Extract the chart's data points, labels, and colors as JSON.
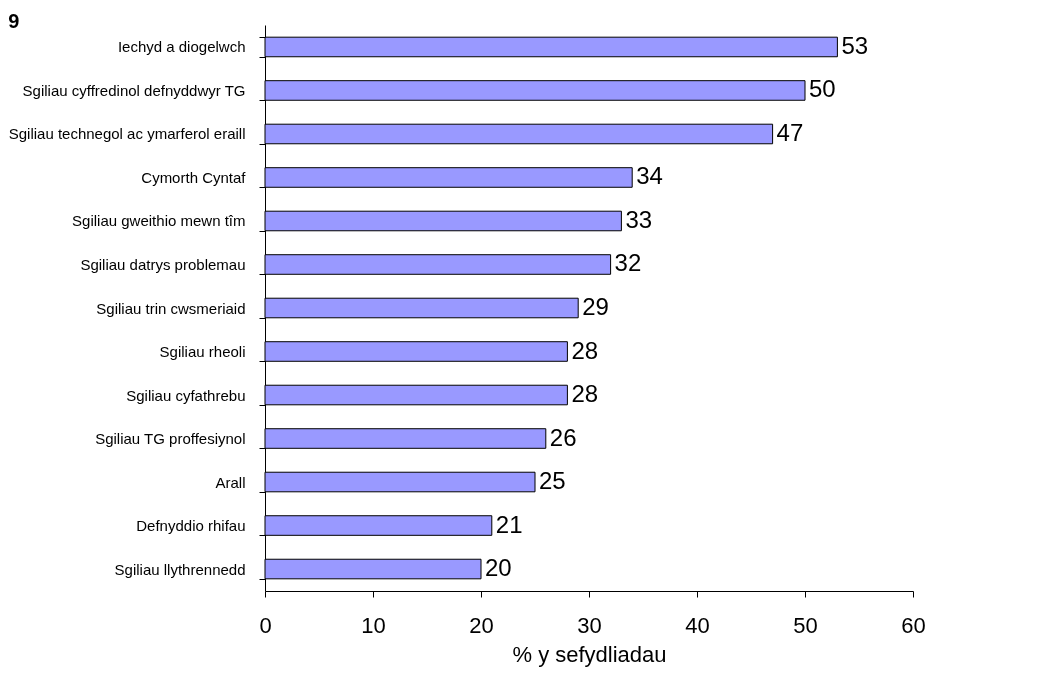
{
  "chart_data": {
    "type": "bar",
    "orientation": "horizontal",
    "title": "9",
    "xlabel": "% y sefydliadau",
    "categories": [
      "Iechyd a diogelwch",
      "Sgiliau cyffredinol defnyddwyr TG",
      "Sgiliau technegol ac ymarferol eraill",
      "Cymorth Cyntaf",
      "Sgiliau gweithio mewn tîm",
      "Sgiliau datrys problemau",
      "Sgiliau trin cwsmeriaid",
      "Sgiliau rheoli",
      "Sgiliau cyfathrebu",
      "Sgiliau TG proffesiynol",
      "Arall",
      "Defnyddio rhifau",
      "Sgiliau llythrennedd"
    ],
    "values": [
      53,
      50,
      47,
      34,
      33,
      32,
      29,
      28,
      28,
      26,
      25,
      21,
      20
    ],
    "color": "#9999ff",
    "xlim": [
      0,
      60
    ],
    "xticks": [
      0,
      10,
      20,
      30,
      40,
      50,
      60
    ],
    "data_labels": true,
    "grid": false
  }
}
